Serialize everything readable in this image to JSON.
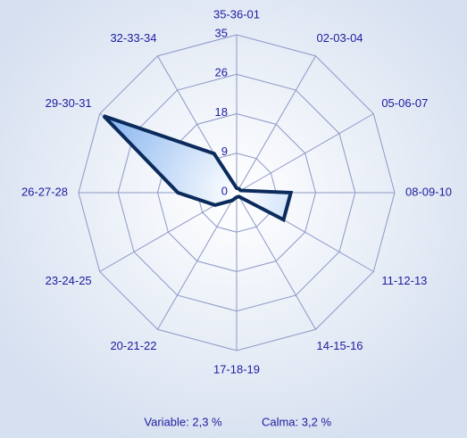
{
  "chart_data": {
    "type": "radar",
    "categories": [
      "35-36-01",
      "02-03-04",
      "05-06-07",
      "08-09-10",
      "11-12-13",
      "14-15-16",
      "17-18-19",
      "20-21-22",
      "23-24-25",
      "26-27-28",
      "29-30-31",
      "32-33-34"
    ],
    "values": [
      1,
      1,
      1,
      12,
      12,
      1,
      1,
      2,
      5.5,
      13,
      34,
      10
    ],
    "color": "#0b2b5c",
    "ylim": [
      0,
      35
    ],
    "yticks": [
      0,
      {
        "value": 8.75,
        "label": "9"
      },
      {
        "value": 17.5,
        "label": "18"
      },
      {
        "value": 26.25,
        "label": "26"
      },
      35
    ],
    "grid": true
  },
  "footer": {
    "variable": "Variable: 2,3 %",
    "calm": "Calma: 3,2 %"
  }
}
